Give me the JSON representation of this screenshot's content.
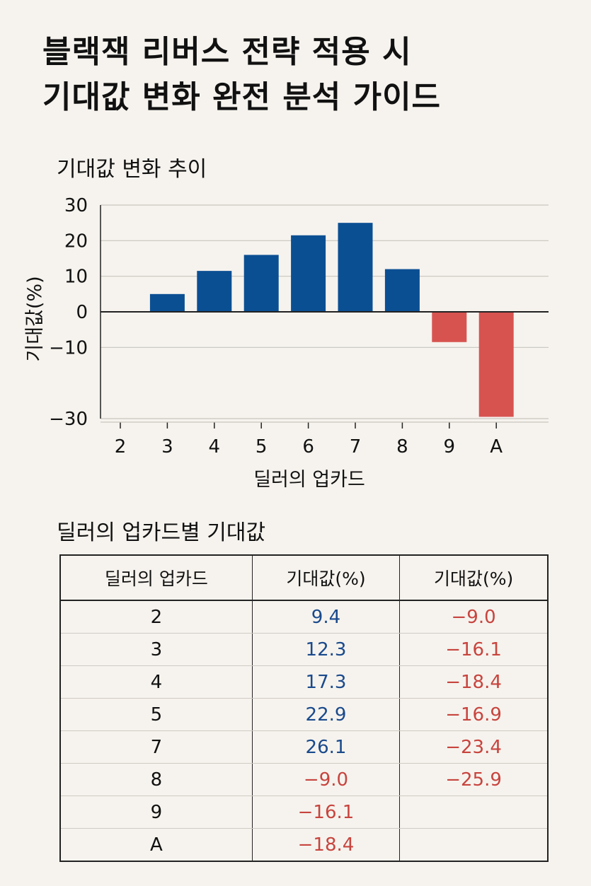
{
  "page": {
    "title_line1": "블랙잭 리버스 전략 적용 시",
    "title_line2": "기대값 변화 완전 분석 가이드"
  },
  "chart_data": {
    "type": "bar",
    "title": "기대값 변화 추이",
    "xlabel": "딜러의 업카드",
    "ylabel": "기대값(%)",
    "categories": [
      "2",
      "3",
      "4",
      "5",
      "6",
      "7",
      "8",
      "9",
      "A"
    ],
    "values": [
      0,
      5,
      11.5,
      16,
      21.5,
      25,
      12,
      -8.5,
      -29.5
    ],
    "ylim": [
      -30,
      30
    ],
    "yticks": [
      30,
      20,
      10,
      0,
      -10,
      -30
    ],
    "grid": true,
    "colors": {
      "positive": "#0b4f93",
      "negative": "#d75350"
    }
  },
  "table": {
    "title": "딜러의 업카드별 기대값",
    "headers": [
      "딜러의 업카드",
      "기대값(%)",
      "기대값(%)"
    ],
    "rows": [
      [
        "2",
        "9.4",
        "−9.0"
      ],
      [
        "3",
        "12.3",
        "−16.1"
      ],
      [
        "4",
        "17.3",
        "−18.4"
      ],
      [
        "5",
        "22.9",
        "−16.9"
      ],
      [
        "7",
        "26.1",
        "−23.4"
      ],
      [
        "8",
        "−9.0",
        "−25.9"
      ],
      [
        "9",
        "−16.1",
        ""
      ],
      [
        "A",
        "−18.4",
        ""
      ]
    ]
  }
}
